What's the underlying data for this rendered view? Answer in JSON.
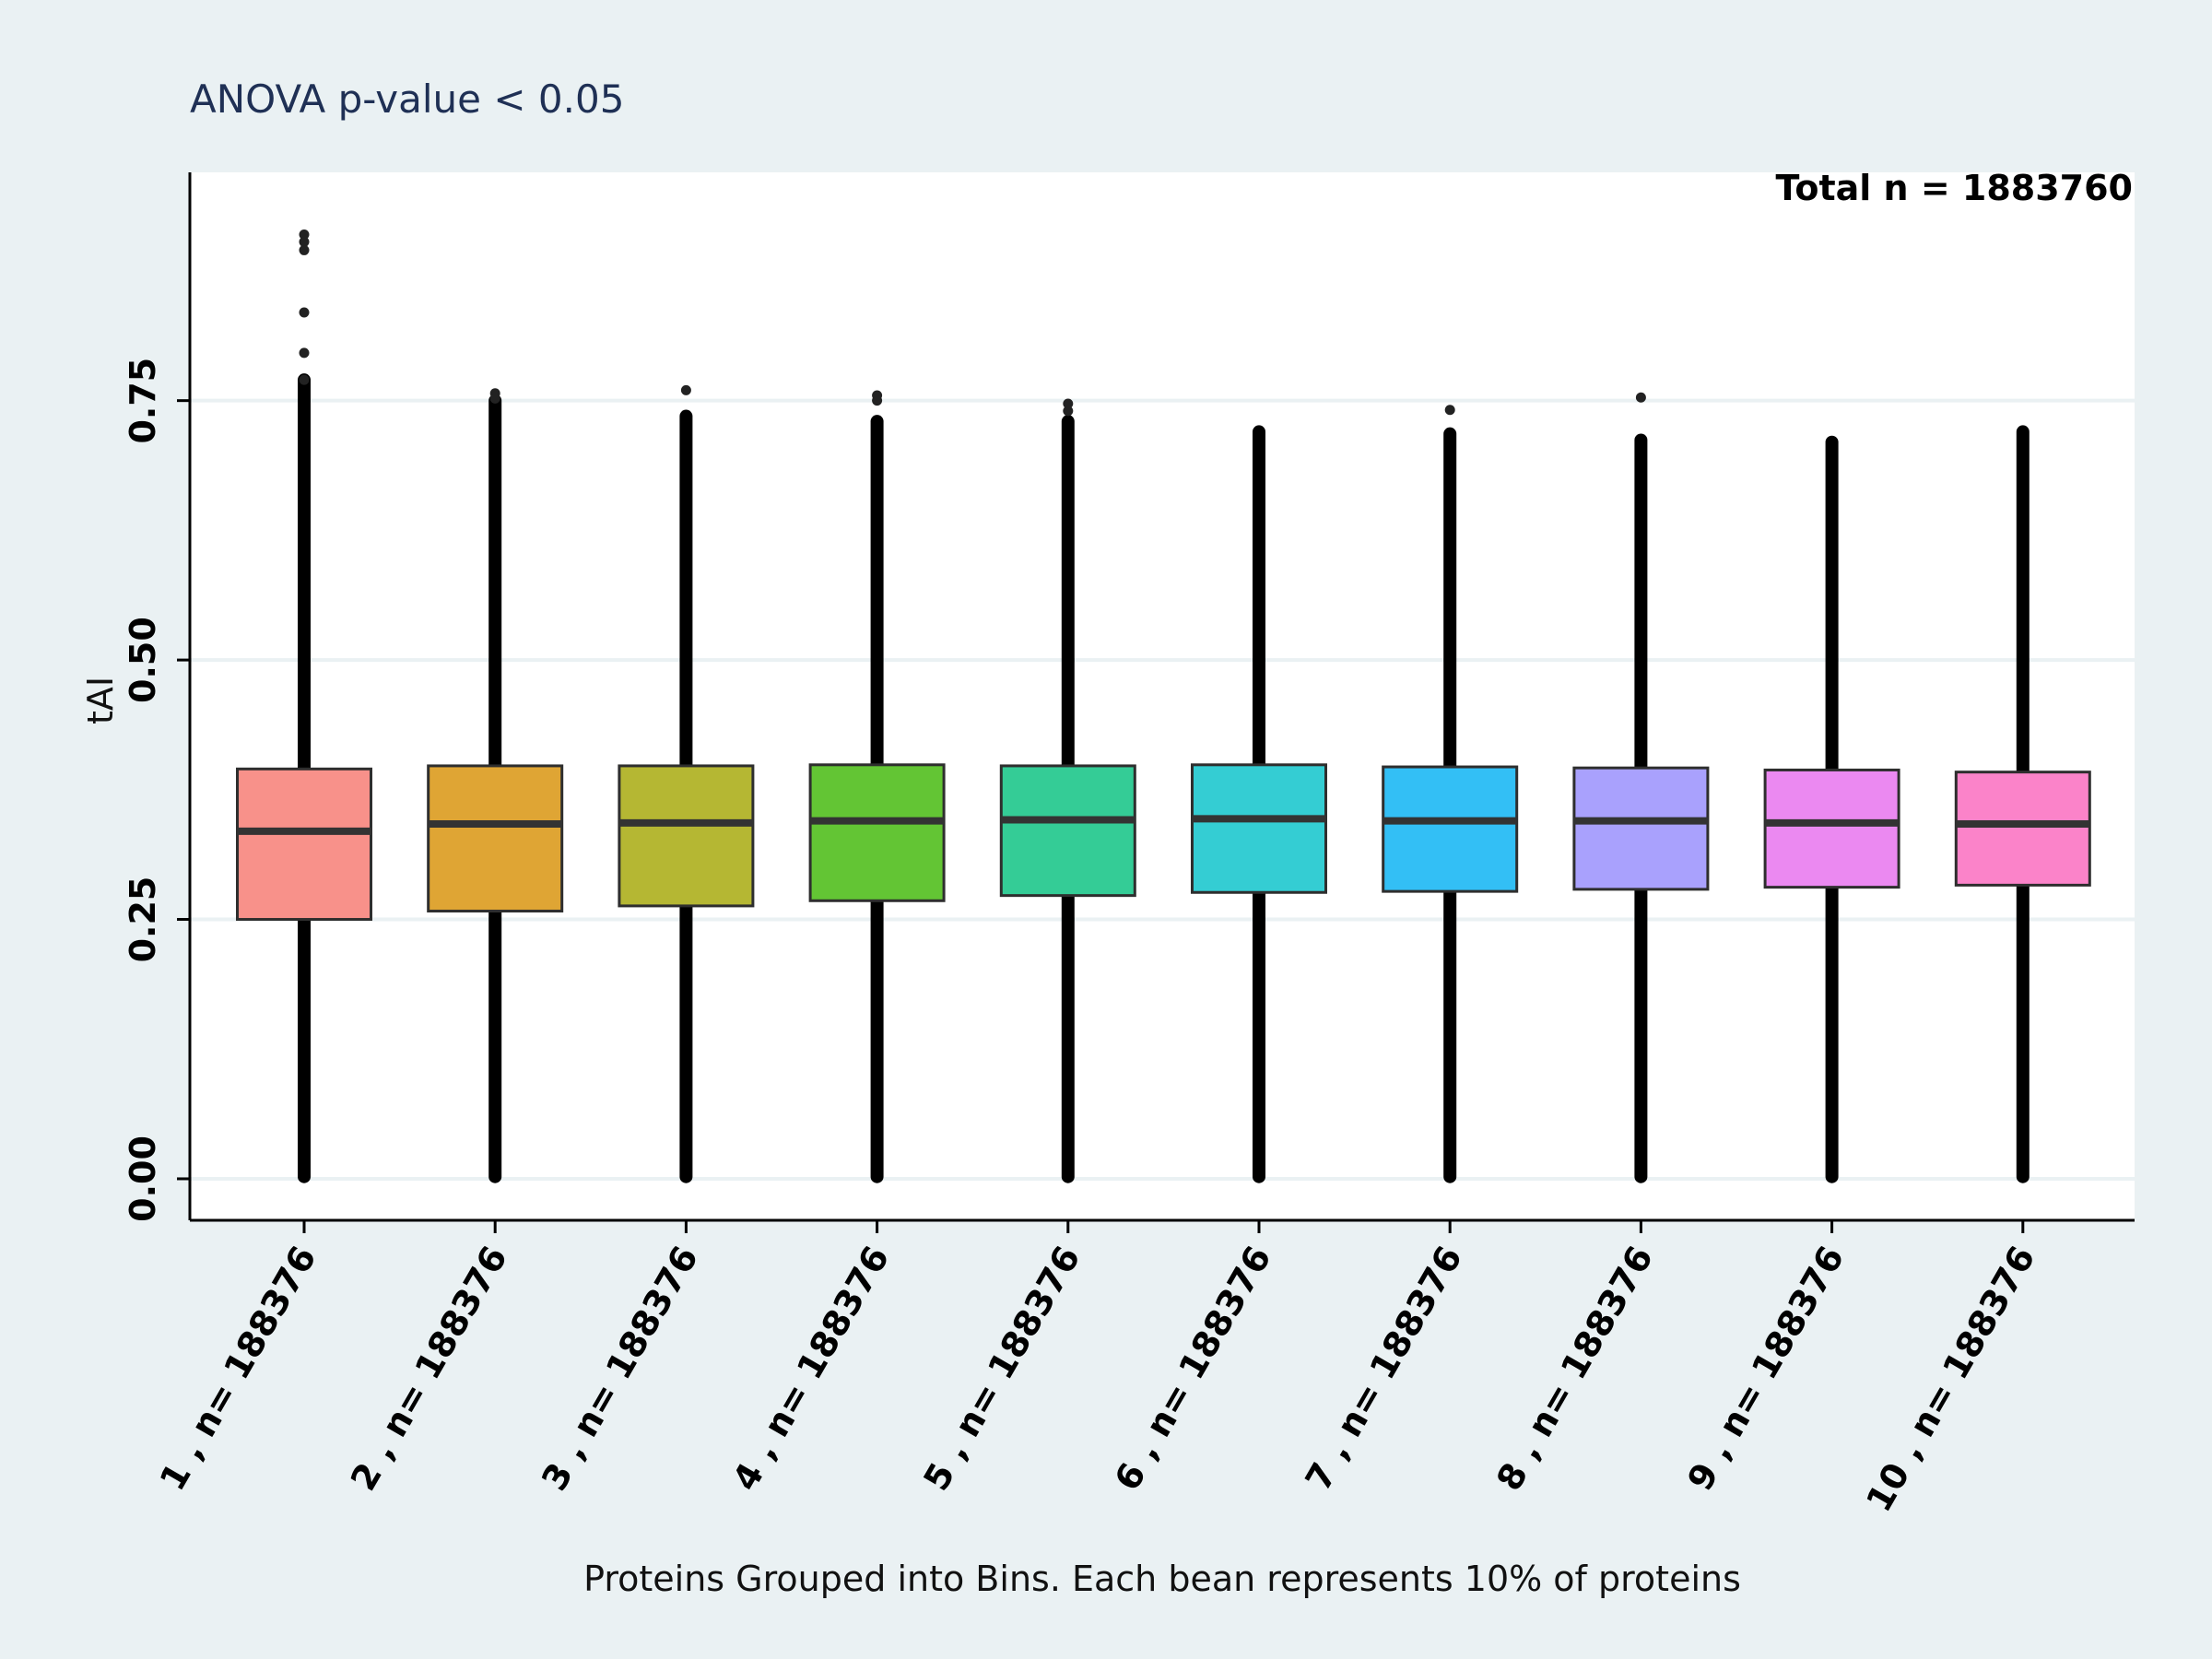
{
  "title": "ANOVA  p-value < 0.05",
  "annotation": "Total n = 1883760",
  "colors": {
    "background": "#EAF1F3",
    "panel": "#FFFFFF",
    "grid": "#EAF1F3",
    "box_edge": "#2E2E2E",
    "whisker": "#000000"
  },
  "chart_data": {
    "type": "box",
    "title": "ANOVA  p-value < 0.05",
    "xlabel": "Proteins Grouped into Bins. Each bean represents 10% of proteins",
    "ylabel": "tAI",
    "ylim": [
      -0.04,
      0.97
    ],
    "yticks": [
      0.0,
      0.25,
      0.5,
      0.75
    ],
    "ytick_labels": [
      "0.00",
      "0.25",
      "0.50",
      "0.75"
    ],
    "grid": "horizontal",
    "categories": [
      "1 , n= 188376",
      "2 , n= 188376",
      "3 , n= 188376",
      "4 , n= 188376",
      "5 , n= 188376",
      "6 , n= 188376",
      "7 , n= 188376",
      "8 , n= 188376",
      "9 , n= 188376",
      "10 , n= 188376"
    ],
    "boxes": [
      {
        "q1": 0.25,
        "median": 0.335,
        "q3": 0.395,
        "color": "#F8918A"
      },
      {
        "q1": 0.258,
        "median": 0.342,
        "q3": 0.398,
        "color": "#DFA534"
      },
      {
        "q1": 0.263,
        "median": 0.343,
        "q3": 0.398,
        "color": "#B5B733"
      },
      {
        "q1": 0.268,
        "median": 0.345,
        "q3": 0.399,
        "color": "#63C534"
      },
      {
        "q1": 0.273,
        "median": 0.346,
        "q3": 0.398,
        "color": "#34CC96"
      },
      {
        "q1": 0.276,
        "median": 0.347,
        "q3": 0.399,
        "color": "#34CDD3"
      },
      {
        "q1": 0.277,
        "median": 0.345,
        "q3": 0.397,
        "color": "#33BFF5"
      },
      {
        "q1": 0.279,
        "median": 0.345,
        "q3": 0.396,
        "color": "#A9A1FD"
      },
      {
        "q1": 0.281,
        "median": 0.343,
        "q3": 0.394,
        "color": "#EB89F1"
      },
      {
        "q1": 0.283,
        "median": 0.342,
        "q3": 0.392,
        "color": "#FB83C9"
      }
    ],
    "point_range": [
      {
        "min": 0.002,
        "max": 0.77
      },
      {
        "min": 0.002,
        "max": 0.75
      },
      {
        "min": 0.002,
        "max": 0.735
      },
      {
        "min": 0.002,
        "max": 0.73
      },
      {
        "min": 0.002,
        "max": 0.73
      },
      {
        "min": 0.002,
        "max": 0.72
      },
      {
        "min": 0.002,
        "max": 0.718
      },
      {
        "min": 0.002,
        "max": 0.712
      },
      {
        "min": 0.002,
        "max": 0.71
      },
      {
        "min": 0.002,
        "max": 0.72
      }
    ],
    "outliers": [
      [
        0.91,
        0.903,
        0.895,
        0.835,
        0.796,
        0.77
      ],
      [
        0.757,
        0.752
      ],
      [
        0.76
      ],
      [
        0.755,
        0.75
      ],
      [
        0.747,
        0.74
      ],
      [],
      [
        0.741
      ],
      [
        0.753
      ],
      [],
      []
    ]
  }
}
